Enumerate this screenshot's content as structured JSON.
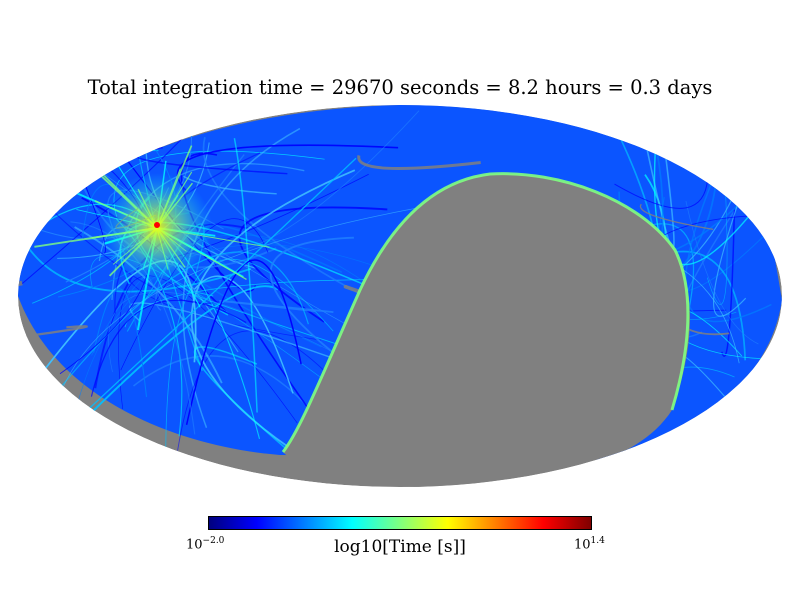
{
  "title": "Total integration time = 29670 seconds = 8.2 hours = 0.3 days",
  "colorbar": {
    "label": "log10[Time [s]]",
    "min_base": "10",
    "min_exp": "−2.0",
    "max_base": "10",
    "max_exp": "1.4",
    "colormap": "jet",
    "colors": [
      "#00007f",
      "#0000ff",
      "#007fff",
      "#00ffff",
      "#7fff7f",
      "#ffff00",
      "#ff7f00",
      "#ff0000",
      "#7f0000"
    ]
  },
  "chart_data": {
    "type": "heatmap",
    "projection": "mollweide",
    "title": "Total integration time = 29670 seconds = 8.2 hours = 0.3 days",
    "quantity": "log10[Time [s]]",
    "color_range": [
      -2.0,
      1.4
    ],
    "unobserved_color": "#808080",
    "totals": {
      "seconds": 29670,
      "hours": 8.2,
      "days": 0.3
    }
  }
}
